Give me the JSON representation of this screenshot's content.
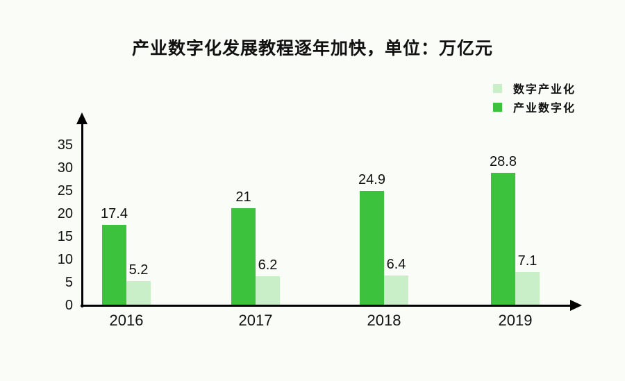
{
  "title": "产业数字化发展教程逐年加快，单位：万亿元",
  "legend": {
    "position": "top-right",
    "items": [
      {
        "label": "数字产业化",
        "color": "#c9efc9"
      },
      {
        "label": "产业数字化",
        "color": "#3cc23c"
      }
    ]
  },
  "chart_data": {
    "type": "bar",
    "categories": [
      "2016",
      "2017",
      "2018",
      "2019"
    ],
    "series": [
      {
        "name": "产业数字化",
        "color": "#3cc23c",
        "values": [
          17.4,
          21,
          24.9,
          28.8
        ]
      },
      {
        "name": "数字产业化",
        "color": "#c9efc9",
        "values": [
          5.2,
          6.2,
          6.4,
          7.1
        ]
      }
    ],
    "title": "产业数字化发展教程逐年加快，单位：万亿元",
    "xlabel": "",
    "ylabel": "",
    "y_ticks": [
      0,
      5,
      10,
      15,
      20,
      25,
      30,
      35
    ],
    "ylim": [
      0,
      38
    ],
    "grid": false,
    "value_labels": true,
    "legend_position": "top-right"
  },
  "colors": {
    "background": "#fafdf7",
    "axis": "#000000",
    "text": "#111111"
  }
}
